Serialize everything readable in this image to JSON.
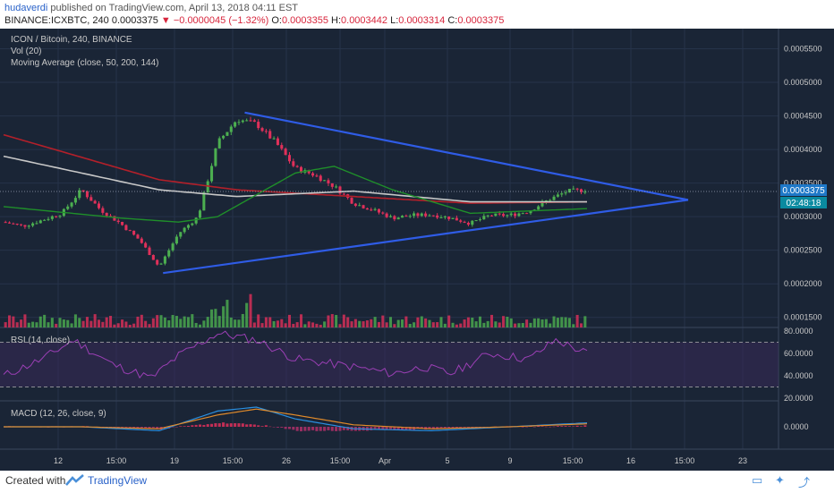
{
  "header": {
    "user": "hudaverdi",
    "published_text": "published on TradingView.com, April 13, 2018 04:11 EST",
    "symbol_line": "BINANCE:ICXBTC, 240",
    "last": "0.0003375",
    "change": "−0.0000045 (−1.32%)",
    "o_label": "O:",
    "o": "0.0003355",
    "h_label": "H:",
    "h": "0.0003442",
    "l_label": "L:",
    "l": "0.0003314",
    "c_label": "C:",
    "c": "0.0003375"
  },
  "legend": {
    "title": "ICON / Bitcoin, 240, BINANCE",
    "vol": "Vol (20)",
    "ma": "Moving Average (close, 50, 200, 144)",
    "rsi": "RSI (14, close)",
    "macd": "MACD (12, 26, close, 9)"
  },
  "price_badge": {
    "price": "0.0003375",
    "countdown": "02:48:18"
  },
  "footer": {
    "created": "Created with",
    "brand": "TradingView"
  },
  "colors": {
    "panel_bg": "#1a2536",
    "grid": "#26334a",
    "up": "#4caf50",
    "down": "#e0305a",
    "trend": "#2f5ce6",
    "ma_green": "#1f8f2a",
    "ma_red": "#b3202a",
    "ma_white": "#c8c8c8",
    "rsi": "#9b3fb5",
    "macd": "#2a8fe0",
    "signal": "#e08a2a",
    "badge_blue": "#1e78c8",
    "badge_teal": "#0a8aa0"
  },
  "chart_data": {
    "type": "candlestick",
    "title": "ICON / Bitcoin, 240, BINANCE",
    "price_axis": {
      "ticks": [
        "0.0005500",
        "0.0005000",
        "0.0004500",
        "0.0004000",
        "0.0003500",
        "0.0003000",
        "0.0002500",
        "0.0002000",
        "0.0001500"
      ],
      "range": [
        0.000135,
        0.00058
      ]
    },
    "rsi_axis": {
      "ticks": [
        "80.0000",
        "60.0000",
        "40.0000",
        "20.0000"
      ],
      "range": [
        20,
        80
      ],
      "bands": [
        70,
        30
      ]
    },
    "macd_axis": {
      "ticks": [
        "0.0000"
      ]
    },
    "x_ticks": [
      "12",
      "15:00",
      "19",
      "15:00",
      "26",
      "15:00",
      "Apr",
      "5",
      "9",
      "15:00",
      "16",
      "15:00",
      "23"
    ],
    "price_path": [
      [
        0,
        0.000292
      ],
      [
        5,
        0.000286
      ],
      [
        10,
        0.000295
      ],
      [
        15,
        0.000305
      ],
      [
        20,
        0.00034
      ],
      [
        25,
        0.00031
      ],
      [
        30,
        0.00029
      ],
      [
        35,
        0.000265
      ],
      [
        40,
        0.000225
      ],
      [
        45,
        0.000275
      ],
      [
        50,
        0.0003
      ],
      [
        55,
        0.00041
      ],
      [
        60,
        0.000445
      ],
      [
        65,
        0.000438
      ],
      [
        70,
        0.00041
      ],
      [
        75,
        0.000372
      ],
      [
        80,
        0.000362
      ],
      [
        85,
        0.000345
      ],
      [
        90,
        0.00032
      ],
      [
        95,
        0.00031
      ],
      [
        100,
        0.000298
      ],
      [
        105,
        0.000302
      ],
      [
        110,
        0.000303
      ],
      [
        115,
        0.000298
      ],
      [
        120,
        0.00029
      ],
      [
        125,
        0.000302
      ],
      [
        130,
        0.000302
      ],
      [
        135,
        0.000308
      ],
      [
        140,
        0.000325
      ],
      [
        145,
        0.000338
      ],
      [
        150,
        0.00034
      ]
    ],
    "ma_144": [
      [
        0,
        0.00039
      ],
      [
        40,
        0.00034
      ],
      [
        60,
        0.00033
      ],
      [
        90,
        0.000338
      ],
      [
        120,
        0.000322
      ],
      [
        150,
        0.000322
      ]
    ],
    "ma_200": [
      [
        0,
        0.000422
      ],
      [
        40,
        0.000355
      ],
      [
        60,
        0.00034
      ],
      [
        90,
        0.00033
      ],
      [
        120,
        0.00032
      ],
      [
        150,
        0.000322
      ]
    ],
    "ma_50": [
      [
        0,
        0.000315
      ],
      [
        30,
        0.000298
      ],
      [
        45,
        0.000292
      ],
      [
        55,
        0.0003
      ],
      [
        75,
        0.000365
      ],
      [
        85,
        0.000375
      ],
      [
        100,
        0.00034
      ],
      [
        120,
        0.000305
      ],
      [
        150,
        0.000312
      ]
    ],
    "trendline_upper": [
      [
        62,
        0.000455
      ],
      [
        176,
        0.000325
      ]
    ],
    "trendline_lower": [
      [
        41,
        0.000216
      ],
      [
        176,
        0.000325
      ]
    ],
    "rsi": [
      [
        0,
        40
      ],
      [
        10,
        55
      ],
      [
        18,
        72
      ],
      [
        28,
        50
      ],
      [
        38,
        38
      ],
      [
        45,
        58
      ],
      [
        55,
        78
      ],
      [
        65,
        72
      ],
      [
        75,
        55
      ],
      [
        90,
        48
      ],
      [
        100,
        42
      ],
      [
        108,
        48
      ],
      [
        115,
        42
      ],
      [
        125,
        60
      ],
      [
        135,
        55
      ],
      [
        142,
        72
      ],
      [
        150,
        60
      ]
    ],
    "macd": [
      [
        0,
        0
      ],
      [
        20,
        0
      ],
      [
        40,
        -2
      ],
      [
        55,
        8
      ],
      [
        65,
        10
      ],
      [
        75,
        4
      ],
      [
        90,
        -1
      ],
      [
        110,
        -2
      ],
      [
        130,
        0
      ],
      [
        150,
        2
      ]
    ],
    "signal": [
      [
        0,
        0
      ],
      [
        20,
        0
      ],
      [
        40,
        -1
      ],
      [
        55,
        6
      ],
      [
        65,
        9
      ],
      [
        75,
        6
      ],
      [
        90,
        1
      ],
      [
        110,
        -1
      ],
      [
        130,
        0
      ],
      [
        150,
        1.5
      ]
    ]
  }
}
